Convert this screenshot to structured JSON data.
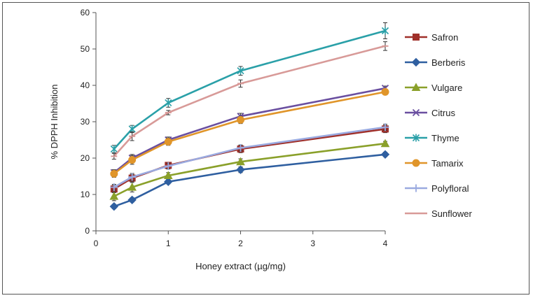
{
  "chart_data": {
    "type": "line",
    "title": "",
    "xlabel": "Honey extract (µg/mg)",
    "ylabel": "% DPPH Inhibition",
    "xlim": [
      0,
      4
    ],
    "ylim": [
      0,
      60
    ],
    "xticks": [
      0,
      1,
      2,
      3,
      4
    ],
    "yticks": [
      0,
      10,
      20,
      30,
      40,
      50,
      60
    ],
    "x": [
      0.25,
      0.5,
      1,
      2,
      4
    ],
    "legend_position": "right",
    "grid": false,
    "series": [
      {
        "name": "Safron",
        "marker": "square",
        "color": "#a0302a",
        "values": [
          11.5,
          14.5,
          18,
          22.5,
          28
        ],
        "errors": [
          1.0,
          1.0,
          0.8,
          1.0,
          1.0
        ]
      },
      {
        "name": "Berberis",
        "marker": "diamond",
        "color": "#2f5fa0",
        "values": [
          6.7,
          8.5,
          13.5,
          16.8,
          21
        ],
        "errors": [
          0.6,
          0.6,
          0.6,
          0.8,
          0.6
        ]
      },
      {
        "name": "Vulgare",
        "marker": "triangle",
        "color": "#8aa02a",
        "values": [
          9.5,
          12,
          15.2,
          19,
          24
        ],
        "errors": [
          1.2,
          1.3,
          0.8,
          0.8,
          0.6
        ]
      },
      {
        "name": "Citrus",
        "marker": "x",
        "color": "#6a4fa0",
        "values": [
          16,
          20,
          25,
          31.5,
          39.2
        ],
        "errors": [
          0.8,
          1.0,
          0.8,
          0.8,
          0.6
        ]
      },
      {
        "name": "Thyme",
        "marker": "star",
        "color": "#2aa0a8",
        "values": [
          22.5,
          28,
          35.2,
          44,
          55
        ],
        "errors": [
          1.0,
          1.0,
          1.2,
          1.2,
          2.2
        ]
      },
      {
        "name": "Tamarix",
        "marker": "circle",
        "color": "#e0952a",
        "values": [
          15.7,
          19.5,
          24.5,
          30.5,
          38.2
        ],
        "errors": [
          1.0,
          1.2,
          1.0,
          1.0,
          0.8
        ]
      },
      {
        "name": "Polyfloral",
        "marker": "plus",
        "color": "#9aaae0",
        "values": [
          12,
          14.8,
          17.8,
          22.8,
          28.5
        ],
        "errors": [
          0.8,
          1.0,
          0.8,
          0.8,
          0.8
        ]
      },
      {
        "name": "Sunflower",
        "marker": "dash",
        "color": "#d89a98",
        "values": [
          20.5,
          26,
          32.5,
          40.5,
          50.8
        ],
        "errors": [
          0.8,
          1.2,
          0.6,
          1.0,
          1.2
        ]
      }
    ]
  }
}
